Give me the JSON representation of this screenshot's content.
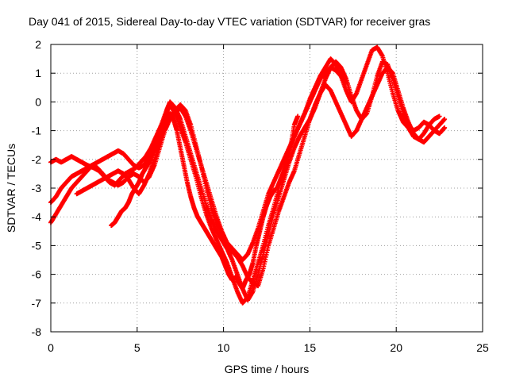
{
  "chart_data": {
    "type": "scatter",
    "title": "Day 041 of 2015, Sidereal Day-to-day VTEC variation (SDTVAR) for receiver gras",
    "xlabel": "GPS time / hours",
    "ylabel": "SDTVAR / TECUs",
    "xlim": [
      0,
      25
    ],
    "ylim": [
      -8,
      2
    ],
    "xticks": [
      "0",
      "5",
      "10",
      "15",
      "20",
      "25"
    ],
    "yticks": [
      "2",
      "1",
      "0",
      "-1",
      "-2",
      "-3",
      "-4",
      "-5",
      "-6",
      "-7",
      "-8"
    ],
    "grid": true,
    "marker": "+",
    "series_color": "#ff0000",
    "series": [
      {
        "x": [
          0.0,
          0.3,
          0.6,
          0.9,
          1.2,
          1.5,
          1.8,
          2.1,
          2.5,
          2.8,
          3.1,
          3.4,
          3.7,
          4.0,
          4.3,
          4.6,
          4.9,
          5.2,
          5.5,
          5.8,
          6.1,
          6.4,
          6.7,
          6.9,
          7.2,
          7.5,
          7.8,
          8.1,
          8.4,
          8.7,
          9.0,
          9.3,
          9.6,
          9.9,
          10.2,
          10.5,
          10.8,
          11.1,
          11.4,
          11.7,
          12.0,
          12.3,
          12.6,
          12.9,
          13.2,
          13.5,
          13.8,
          14.1,
          14.4,
          14.7,
          15.0,
          15.3,
          15.6,
          15.9,
          16.2,
          16.5,
          16.8,
          17.1,
          17.4,
          17.7,
          18.0,
          18.3,
          18.6,
          18.9,
          19.2,
          19.5,
          19.8,
          20.1,
          20.4,
          20.7,
          21.0,
          21.3,
          21.6,
          21.9,
          22.2,
          22.5,
          22.8
        ],
        "y": [
          -2.1,
          -2.0,
          -2.1,
          -2.0,
          -1.9,
          -2.0,
          -2.1,
          -2.2,
          -2.3,
          -2.4,
          -2.6,
          -2.8,
          -2.9,
          -2.7,
          -2.5,
          -2.4,
          -2.3,
          -2.1,
          -1.9,
          -1.6,
          -1.2,
          -0.8,
          -0.3,
          0.0,
          -0.2,
          -0.6,
          -1.2,
          -1.8,
          -2.4,
          -3.0,
          -3.6,
          -4.1,
          -4.5,
          -4.8,
          -5.1,
          -5.5,
          -6.0,
          -6.5,
          -6.9,
          -6.6,
          -6.0,
          -5.3,
          -4.6,
          -3.9,
          -3.3,
          -2.7,
          -2.1,
          -1.6,
          -1.2,
          -0.9,
          -0.6,
          -0.2,
          0.3,
          0.8,
          1.2,
          1.4,
          1.2,
          0.8,
          0.2,
          -0.3,
          -0.6,
          -0.4,
          0.2,
          0.9,
          1.4,
          1.3,
          0.8,
          0.2,
          -0.4,
          -0.8,
          -1.0,
          -0.9,
          -0.7,
          -0.8,
          -1.0,
          -1.1,
          -0.9
        ]
      },
      {
        "x": [
          0.0,
          0.3,
          0.6,
          0.9,
          1.2,
          1.5,
          1.8,
          2.1,
          2.4,
          2.7,
          3.0,
          3.3,
          3.6,
          3.9,
          4.2,
          4.5,
          4.8,
          5.1,
          5.4,
          5.7,
          6.0,
          6.3,
          6.6,
          6.9,
          7.2,
          7.5,
          7.8,
          8.1,
          8.4,
          8.7,
          9.0,
          9.3,
          9.6,
          9.9,
          10.2,
          10.5,
          10.8,
          11.1,
          11.4,
          11.7,
          12.0,
          12.3,
          12.6,
          12.9,
          13.2,
          13.5,
          13.8,
          14.1,
          14.4,
          14.7,
          15.0,
          15.3,
          15.6,
          15.9,
          16.2,
          16.5,
          16.8,
          17.1,
          17.4,
          17.7,
          18.0,
          18.3,
          18.6,
          18.9,
          19.2,
          19.5,
          19.8,
          20.1,
          20.4,
          20.7,
          21.0,
          21.3,
          21.6,
          21.9,
          22.2,
          22.5
        ],
        "y": [
          -4.2,
          -3.9,
          -3.6,
          -3.3,
          -3.0,
          -2.8,
          -2.6,
          -2.4,
          -2.2,
          -2.1,
          -2.0,
          -1.9,
          -1.8,
          -1.7,
          -1.8,
          -2.0,
          -2.2,
          -2.3,
          -2.2,
          -1.9,
          -1.5,
          -1.0,
          -0.5,
          -0.1,
          -0.4,
          -0.9,
          -1.4,
          -2.0,
          -2.6,
          -3.3,
          -3.9,
          -4.4,
          -4.8,
          -5.2,
          -5.6,
          -6.1,
          -6.6,
          -7.0,
          -6.8,
          -6.2,
          -5.6,
          -5.0,
          -4.3,
          -3.7,
          -3.0,
          -2.3,
          -1.7,
          -1.2,
          -0.8,
          -0.4,
          0.1,
          0.5,
          0.9,
          1.2,
          1.5,
          1.3,
          0.9,
          0.4,
          0.0,
          0.3,
          0.8,
          1.3,
          1.8,
          1.9,
          1.6,
          1.0,
          0.3,
          -0.3,
          -0.7,
          -0.9,
          -1.2,
          -1.3,
          -1.1,
          -0.8,
          -0.6,
          -0.5
        ]
      },
      {
        "x": [
          0.0,
          0.3,
          0.6,
          0.9,
          1.2,
          1.5,
          1.8,
          2.1,
          2.4,
          2.7,
          3.0,
          3.3,
          3.6,
          3.9,
          4.2,
          4.5,
          4.8,
          5.1,
          5.4,
          5.7,
          6.0,
          6.3,
          6.6,
          6.9,
          7.2,
          7.5,
          7.8,
          8.1,
          8.4,
          8.7,
          9.0,
          9.3,
          9.6,
          9.9,
          10.2,
          10.5,
          10.8,
          11.1,
          11.4,
          11.7,
          12.0,
          12.3,
          12.6,
          12.9,
          13.2,
          13.5,
          13.8,
          14.1,
          14.4,
          14.7,
          15.0,
          15.3,
          15.6,
          15.9,
          16.2,
          16.5,
          16.8,
          17.1,
          17.4,
          17.7,
          18.0,
          18.3,
          18.6,
          18.9,
          19.2,
          19.5,
          19.8,
          20.1,
          20.4,
          20.7,
          21.0,
          21.3,
          21.6,
          21.9,
          22.2,
          22.5,
          22.8
        ],
        "y": [
          -3.5,
          -3.3,
          -3.0,
          -2.8,
          -2.6,
          -2.5,
          -2.4,
          -2.3,
          -2.2,
          -2.3,
          -2.5,
          -2.7,
          -2.8,
          -2.9,
          -2.8,
          -2.6,
          -2.5,
          -2.6,
          -2.8,
          -2.6,
          -2.2,
          -1.6,
          -1.0,
          -0.6,
          -0.4,
          -0.2,
          -0.5,
          -1.0,
          -1.6,
          -2.2,
          -2.8,
          -3.4,
          -4.0,
          -4.5,
          -4.9,
          -5.2,
          -5.4,
          -5.7,
          -6.1,
          -6.3,
          -6.4,
          -5.8,
          -5.0,
          -4.4,
          -3.8,
          -3.3,
          -2.8,
          -2.4,
          -1.8,
          -1.2,
          -0.6,
          -0.1,
          0.3,
          0.6,
          0.4,
          0.0,
          -0.4,
          -0.8,
          -1.2,
          -1.0,
          -0.6,
          -0.2,
          0.2,
          0.6,
          1.0,
          1.2,
          1.0,
          0.4,
          -0.2,
          -0.7,
          -1.1,
          -1.3,
          -1.4,
          -1.2,
          -1.0,
          -0.8,
          -0.6
        ]
      },
      {
        "x": [
          1.5,
          1.8,
          2.1,
          2.4,
          2.7,
          3.0,
          3.3,
          3.6,
          3.9,
          4.2,
          4.5,
          4.8,
          5.1,
          5.4,
          5.7,
          6.0,
          6.3,
          6.6,
          6.9,
          7.2,
          7.5,
          7.8,
          8.1,
          8.4,
          8.7,
          9.0,
          9.3,
          9.6,
          9.9,
          10.2,
          10.5,
          10.8,
          11.1,
          11.4,
          11.7,
          12.0,
          12.3,
          12.6,
          12.9,
          13.2,
          13.5,
          13.8,
          14.1,
          14.4,
          14.7,
          15.0,
          15.3,
          15.6,
          15.9,
          16.2,
          16.5,
          16.8,
          17.1
        ],
        "y": [
          -3.2,
          -3.1,
          -3.0,
          -2.9,
          -2.8,
          -2.7,
          -2.6,
          -2.5,
          -2.4,
          -2.5,
          -2.7,
          -3.0,
          -3.2,
          -2.9,
          -2.5,
          -2.0,
          -1.4,
          -0.9,
          -0.5,
          -0.3,
          -0.1,
          -0.3,
          -0.8,
          -1.5,
          -2.2,
          -3.0,
          -3.7,
          -4.2,
          -4.6,
          -4.9,
          -5.1,
          -5.3,
          -5.5,
          -5.3,
          -4.9,
          -4.4,
          -3.8,
          -3.2,
          -2.8,
          -2.4,
          -2.0,
          -1.6,
          -1.2,
          -0.8,
          -0.4,
          0.0,
          0.4,
          0.8,
          1.0,
          1.2,
          1.1,
          0.9,
          0.7
        ]
      },
      {
        "x": [
          3.5,
          3.7,
          3.9,
          4.1,
          4.3,
          4.5,
          4.7,
          4.9,
          5.1,
          5.3,
          5.5,
          5.7,
          5.9,
          6.1,
          6.3,
          6.5,
          6.7,
          6.9,
          7.1,
          7.3,
          7.5,
          7.7,
          7.9,
          8.1,
          8.3,
          8.5,
          8.7,
          8.9,
          9.1,
          9.3,
          9.5,
          9.7,
          9.9,
          10.1,
          10.3,
          10.5,
          10.7,
          10.9,
          11.1,
          11.3,
          11.5,
          11.7,
          11.9,
          12.1,
          12.3,
          12.5,
          12.7,
          12.9,
          13.1,
          13.3,
          13.5,
          13.7,
          13.9,
          14.1,
          14.3
        ],
        "y": [
          -4.3,
          -4.2,
          -4.0,
          -3.8,
          -3.7,
          -3.5,
          -3.2,
          -3.0,
          -2.8,
          -2.5,
          -2.3,
          -2.1,
          -1.8,
          -1.5,
          -1.2,
          -0.9,
          -0.6,
          -0.4,
          -0.6,
          -1.0,
          -1.6,
          -2.2,
          -2.8,
          -3.3,
          -3.7,
          -4.0,
          -4.2,
          -4.4,
          -4.6,
          -4.8,
          -5.0,
          -5.2,
          -5.4,
          -5.7,
          -6.0,
          -6.2,
          -6.1,
          -6.3,
          -6.5,
          -6.2,
          -6.0,
          -5.6,
          -5.0,
          -4.5,
          -4.0,
          -3.6,
          -3.3,
          -3.1,
          -3.0,
          -2.7,
          -2.4,
          -2.0,
          -1.5,
          -0.8,
          -0.5
        ]
      }
    ]
  }
}
